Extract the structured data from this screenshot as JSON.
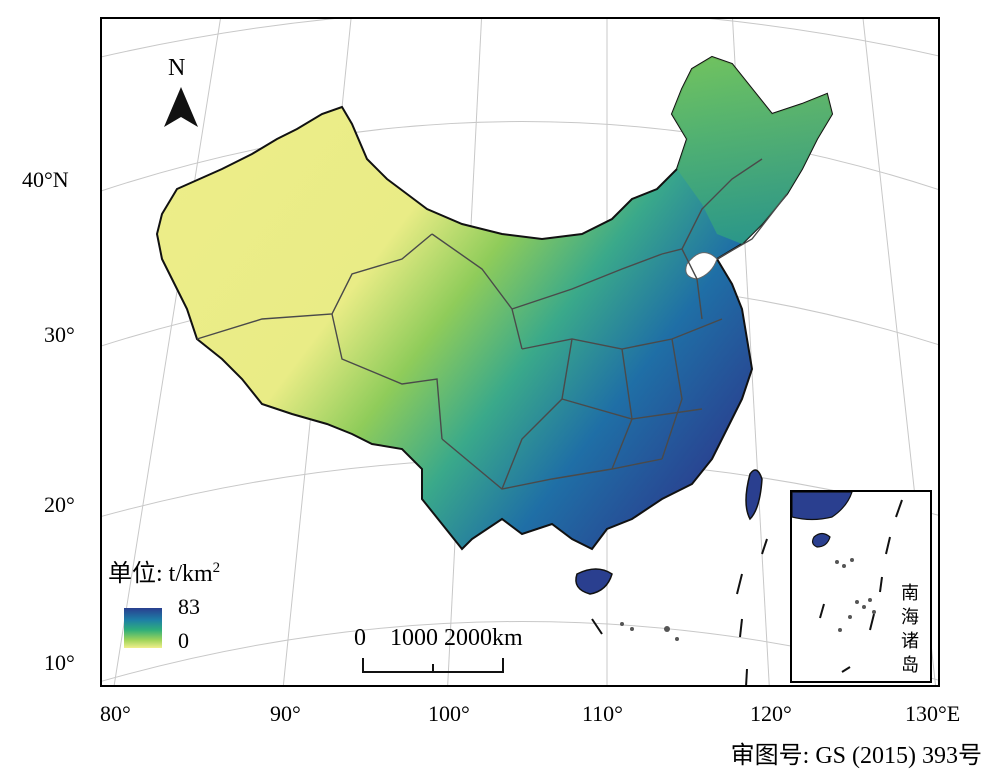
{
  "map": {
    "north_label": "N",
    "latitude_labels": [
      "40°N",
      "30°",
      "20°",
      "10°"
    ],
    "longitude_labels": [
      "80°",
      "90°",
      "100°",
      "110°",
      "120°",
      "130°E"
    ],
    "colors": {
      "high": "#2a3f8f",
      "mid": "#2fae7a",
      "low": "#f0ef8c",
      "boundary": "#4a4a4a"
    }
  },
  "legend": {
    "title_prefix": "单位: t/km",
    "title_sup": "2",
    "max_label": "83",
    "min_label": "0",
    "max_value": 83,
    "min_value": 0
  },
  "scale_bar": {
    "labels": "0    1000 2000km"
  },
  "inset": {
    "label_chars": [
      "南",
      "海",
      "诸",
      "岛"
    ]
  },
  "approval": "审图号: GS (2015) 393号"
}
